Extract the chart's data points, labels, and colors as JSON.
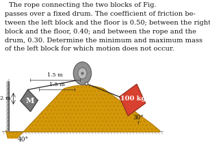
{
  "text_lines": [
    "The rope connecting the two blocks of Fig.",
    "passes over a fixed drum. The coefficient of friction be-",
    "tween the left block and the floor is 0.50; between the right",
    "block and the floor, 0.40; and between the rope and the",
    "drum, 0.30. Determine the minimum and maximum mass",
    "of the left block for which motion does not occur."
  ],
  "text_fontsize": 7.1,
  "text_color": "#111111",
  "bg_color": "#ffffff",
  "ramp_fill": "#d4980a",
  "ramp_edge": "#b07800",
  "ramp_hatch_color": "#c08800",
  "ground_hatch_color": "#999999",
  "drum_gray": "#909090",
  "drum_dark": "#666666",
  "drum_light": "#bbbbbb",
  "left_block_color": "#777777",
  "left_block_edge": "#444444",
  "right_block_color": "#d84030",
  "right_block_edge": "#993020",
  "rope_color": "#222222",
  "wall_color": "#aaaaaa",
  "wall_hatch": "#888888",
  "label_M": "M",
  "label_100kg": "100 kg",
  "label_2m": "2 m",
  "label_15m_top": "1.5 m",
  "label_15m_bot": "1.5 m",
  "label_40": "40°",
  "label_30": "30°",
  "text_label_color": "#111111"
}
